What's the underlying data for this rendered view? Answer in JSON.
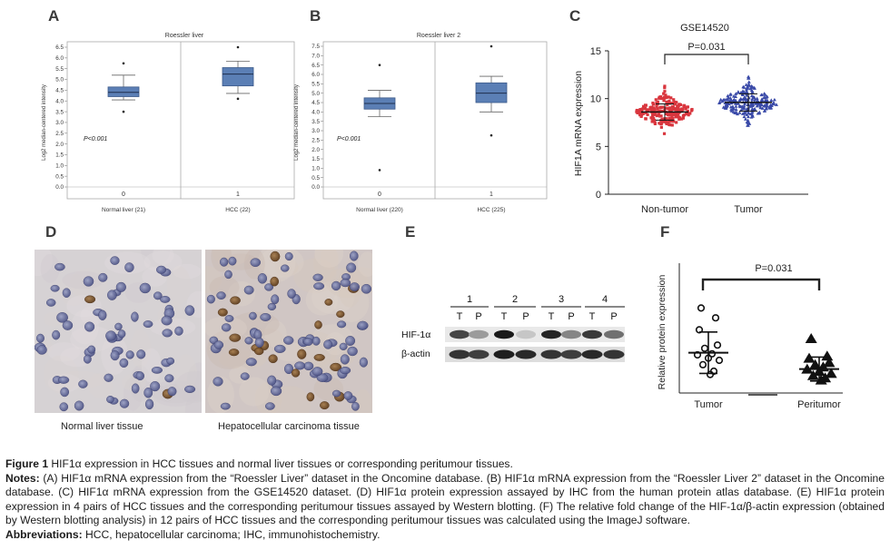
{
  "panels": {
    "A": {
      "letter": "A",
      "title": "Roessler liver",
      "ylabel": "Log2 median-centered intensity",
      "yticks": [
        "6.5",
        "6.0",
        "5.5",
        "5.0",
        "4.5",
        "4.0",
        "3.5",
        "3.0",
        "2.5",
        "2.0",
        "1.5",
        "1.0",
        "0.5",
        "0.0"
      ],
      "pvalue": "P<0.001",
      "groups": [
        "0",
        "1"
      ],
      "xlabels": [
        "Normal liver (21)",
        "HCC (22)"
      ]
    },
    "B": {
      "letter": "B",
      "title": "Roessler liver 2",
      "ylabel": "Log2 median-centered intensity",
      "yticks": [
        "7.5",
        "7.0",
        "6.5",
        "6.0",
        "5.5",
        "5.0",
        "4.5",
        "4.0",
        "3.5",
        "3.0",
        "2.5",
        "2.0",
        "1.5",
        "1.0",
        "0.5",
        "0.0"
      ],
      "pvalue": "P<0.001",
      "groups": [
        "0",
        "1"
      ],
      "xlabels": [
        "Normal liver (220)",
        "HCC (225)"
      ]
    },
    "C": {
      "letter": "C",
      "title": "GSE14520",
      "ylabel": "HIF1A mRNA expression",
      "yticks": [
        "15",
        "10",
        "5",
        "0"
      ],
      "pvalue": "P=0.031",
      "xlabels": [
        "Non-tumor",
        "Tumor"
      ]
    },
    "D": {
      "letter": "D",
      "labels": [
        "Normal liver tissue",
        "Hepatocellular carcinoma tissue"
      ]
    },
    "E": {
      "letter": "E",
      "pairs": [
        "1",
        "2",
        "3",
        "4"
      ],
      "lanes": [
        "T",
        "P",
        "T",
        "P",
        "T",
        "P",
        "T",
        "P"
      ],
      "rows": [
        "HIF-1α",
        "β-actin"
      ]
    },
    "F": {
      "letter": "F",
      "ylabel": "Relative protein expression",
      "pvalue": "P=0.031",
      "xlabels": [
        "Tumor",
        "Peritumor"
      ]
    }
  },
  "chart_data": [
    {
      "type": "box",
      "title": "Roessler liver",
      "ylabel": "Log2 median-centered intensity",
      "ylim": [
        0,
        6.5
      ],
      "categories": [
        "Normal liver (21)",
        "HCC (22)"
      ],
      "boxes": [
        {
          "min": 4.05,
          "q1": 4.2,
          "median": 4.4,
          "q3": 4.65,
          "max": 5.2,
          "outliers": [
            5.75,
            3.5
          ]
        },
        {
          "min": 4.35,
          "q1": 4.7,
          "median": 5.25,
          "q3": 5.55,
          "max": 5.85,
          "outliers": [
            6.5,
            4.1
          ]
        }
      ],
      "annotation": "P<0.001"
    },
    {
      "type": "box",
      "title": "Roessler liver 2",
      "ylabel": "Log2 median-centered intensity",
      "ylim": [
        0,
        7.5
      ],
      "categories": [
        "Normal liver (220)",
        "HCC (225)"
      ],
      "boxes": [
        {
          "min": 3.75,
          "q1": 4.15,
          "median": 4.45,
          "q3": 4.75,
          "max": 5.15,
          "outliers": [
            6.5,
            0.9
          ]
        },
        {
          "min": 4.0,
          "q1": 4.5,
          "median": 5.0,
          "q3": 5.55,
          "max": 5.9,
          "outliers": [
            7.5,
            2.75
          ]
        }
      ],
      "annotation": "P<0.001"
    },
    {
      "type": "scatter",
      "title": "GSE14520",
      "ylabel": "HIF1A mRNA expression",
      "ylim": [
        0,
        15
      ],
      "categories": [
        "Non-tumor",
        "Tumor"
      ],
      "series": [
        {
          "name": "Non-tumor",
          "mean": 8.6,
          "sd": 0.85,
          "min": 5.8,
          "max": 11.3,
          "color": "#d9363e"
        },
        {
          "name": "Tumor",
          "mean": 9.6,
          "sd": 0.9,
          "min": 7.2,
          "max": 12.3,
          "color": "#3a4aa8"
        }
      ],
      "annotation": "P=0.031"
    },
    {
      "type": "scatter",
      "ylabel": "Relative protein expression",
      "categories": [
        "Tumor",
        "Peritumor"
      ],
      "series": [
        {
          "name": "Tumor",
          "mean": 1.85,
          "sd": 0.95,
          "values": [
            3.9,
            3.45,
            2.9,
            2.2,
            2.05,
            1.8,
            1.75,
            1.6,
            1.5,
            1.3,
            1.0,
            0.85
          ]
        },
        {
          "name": "Peritumor",
          "mean": 1.1,
          "sd": 0.55,
          "values": [
            2.5,
            1.7,
            1.6,
            1.4,
            1.3,
            1.2,
            1.1,
            1.0,
            0.9,
            0.8,
            0.7,
            0.6
          ]
        }
      ],
      "annotation": "P=0.031"
    }
  ],
  "caption": {
    "figure_label": "Figure 1",
    "figure_text": " HIF1α expression in HCC tissues and normal liver tissues or corresponding peritumour tissues.",
    "notes_label": "Notes:",
    "notes_text": " (A) HIF1α mRNA expression from the “Roessler Liver” dataset in the Oncomine database. (B) HIF1α mRNA expression from the “Roessler Liver 2” dataset in the Oncomine database. (C) HIF1α mRNA expression from the GSE14520 dataset. (D) HIF1α protein expression assayed by IHC from the human protein atlas database. (E) HIF1α protein expression in 4 pairs of HCC tissues and the corresponding peritumour tissues assayed by Western blotting. (F) The relative fold change of the HIF-1α/β-actin expression (obtained by Western blotting analysis) in 12 pairs of HCC tissues and the corresponding peritumour tissues was calculated using the ImageJ software.",
    "abbrev_label": "Abbreviations:",
    "abbrev_text": " HCC, hepatocellular carcinoma; IHC, immunohistochemistry."
  }
}
